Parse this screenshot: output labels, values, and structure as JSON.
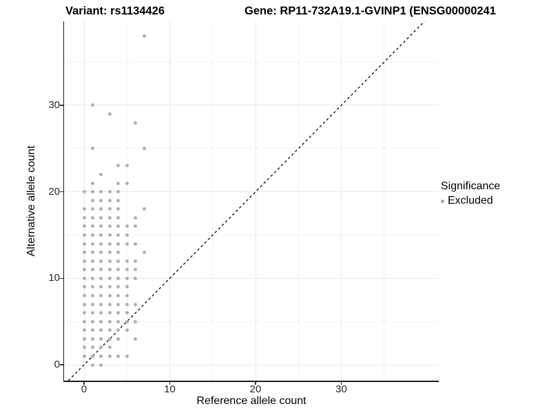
{
  "title": {
    "variant": "Variant: rs1134426",
    "gene": "Gene: RP11-732A19.1-GVINP1 (ENSG00000241"
  },
  "chart_data": {
    "type": "scatter",
    "title": "Variant: rs1134426   Gene: RP11-732A19.1-GVINP1 (ENSG00000241",
    "xlabel": "Reference allele count",
    "ylabel": "Alternative allele count",
    "x_ticks": [
      0,
      10,
      20,
      30
    ],
    "y_ticks": [
      0,
      10,
      20,
      30
    ],
    "x_minor_ticks": [
      5,
      15,
      25,
      35
    ],
    "y_minor_ticks": [
      5,
      15,
      25,
      35
    ],
    "xlim": [
      -2.3,
      41.4
    ],
    "ylim": [
      -1.8,
      39.7
    ],
    "grid": "major-and-minor",
    "legend": {
      "title": "Significance",
      "position": "right",
      "items": [
        {
          "label": "Excluded",
          "color": "#a9a9a9"
        }
      ]
    },
    "identity_line": {
      "slope": 1,
      "intercept": 0,
      "style": "dashed",
      "color": "#000000"
    },
    "series": [
      {
        "name": "Excluded",
        "color": "#b0b0b0",
        "points": [
          [
            1,
            0
          ],
          [
            2,
            0
          ],
          [
            0,
            1
          ],
          [
            1,
            1
          ],
          [
            2,
            1
          ],
          [
            3,
            1
          ],
          [
            4,
            1
          ],
          [
            5,
            1
          ],
          [
            0,
            2
          ],
          [
            1,
            2
          ],
          [
            2,
            2
          ],
          [
            3,
            2
          ],
          [
            0,
            3
          ],
          [
            1,
            3
          ],
          [
            2,
            3
          ],
          [
            3,
            3
          ],
          [
            4,
            3
          ],
          [
            6,
            3
          ],
          [
            0,
            4
          ],
          [
            1,
            4
          ],
          [
            2,
            4
          ],
          [
            3,
            4
          ],
          [
            4,
            4
          ],
          [
            5,
            4
          ],
          [
            0,
            5
          ],
          [
            1,
            5
          ],
          [
            2,
            5
          ],
          [
            3,
            5
          ],
          [
            4,
            5
          ],
          [
            5,
            5
          ],
          [
            6,
            5
          ],
          [
            0,
            6
          ],
          [
            1,
            6
          ],
          [
            2,
            6
          ],
          [
            3,
            6
          ],
          [
            4,
            6
          ],
          [
            5,
            6
          ],
          [
            0,
            7
          ],
          [
            1,
            7
          ],
          [
            2,
            7
          ],
          [
            3,
            7
          ],
          [
            4,
            7
          ],
          [
            5,
            7
          ],
          [
            6,
            7
          ],
          [
            0,
            8
          ],
          [
            1,
            8
          ],
          [
            2,
            8
          ],
          [
            3,
            8
          ],
          [
            4,
            8
          ],
          [
            5,
            8
          ],
          [
            0,
            9
          ],
          [
            1,
            9
          ],
          [
            2,
            9
          ],
          [
            3,
            9
          ],
          [
            4,
            9
          ],
          [
            5,
            9
          ],
          [
            0,
            10
          ],
          [
            1,
            10
          ],
          [
            2,
            10
          ],
          [
            3,
            10
          ],
          [
            4,
            10
          ],
          [
            5,
            10
          ],
          [
            6,
            10
          ],
          [
            0,
            11
          ],
          [
            1,
            11
          ],
          [
            2,
            11
          ],
          [
            3,
            11
          ],
          [
            4,
            11
          ],
          [
            5,
            11
          ],
          [
            6,
            11
          ],
          [
            0,
            12
          ],
          [
            1,
            12
          ],
          [
            2,
            12
          ],
          [
            3,
            12
          ],
          [
            4,
            12
          ],
          [
            5,
            12
          ],
          [
            6,
            12
          ],
          [
            0,
            13
          ],
          [
            1,
            13
          ],
          [
            2,
            13
          ],
          [
            3,
            13
          ],
          [
            4,
            13
          ],
          [
            7,
            13
          ],
          [
            0,
            14
          ],
          [
            1,
            14
          ],
          [
            2,
            14
          ],
          [
            3,
            14
          ],
          [
            4,
            14
          ],
          [
            5,
            14
          ],
          [
            6,
            14
          ],
          [
            0,
            15
          ],
          [
            1,
            15
          ],
          [
            2,
            15
          ],
          [
            3,
            15
          ],
          [
            4,
            15
          ],
          [
            5,
            15
          ],
          [
            0,
            16
          ],
          [
            1,
            16
          ],
          [
            2,
            16
          ],
          [
            3,
            16
          ],
          [
            4,
            16
          ],
          [
            5,
            16
          ],
          [
            6,
            16
          ],
          [
            0,
            17
          ],
          [
            1,
            17
          ],
          [
            2,
            17
          ],
          [
            3,
            17
          ],
          [
            4,
            17
          ],
          [
            6,
            17
          ],
          [
            0,
            18
          ],
          [
            1,
            18
          ],
          [
            2,
            18
          ],
          [
            3,
            18
          ],
          [
            4,
            18
          ],
          [
            7,
            18
          ],
          [
            1,
            19
          ],
          [
            2,
            19
          ],
          [
            3,
            19
          ],
          [
            4,
            19
          ],
          [
            0,
            20
          ],
          [
            1,
            20
          ],
          [
            2,
            20
          ],
          [
            3,
            20
          ],
          [
            4,
            20
          ],
          [
            1,
            21
          ],
          [
            4,
            21
          ],
          [
            5,
            21
          ],
          [
            2,
            22
          ],
          [
            4,
            23
          ],
          [
            5,
            23
          ],
          [
            1,
            25
          ],
          [
            7,
            25
          ],
          [
            6,
            28
          ],
          [
            3,
            29
          ],
          [
            1,
            30
          ],
          [
            7,
            38
          ]
        ]
      }
    ]
  },
  "colors": {
    "background": "#ffffff",
    "grid_major": "#e7e7e7",
    "grid_minor": "#f2f2f2",
    "axis_line": "#1a1a1a",
    "point": "#b0b0b0",
    "identity_line": "#000000",
    "text": "#000000"
  }
}
